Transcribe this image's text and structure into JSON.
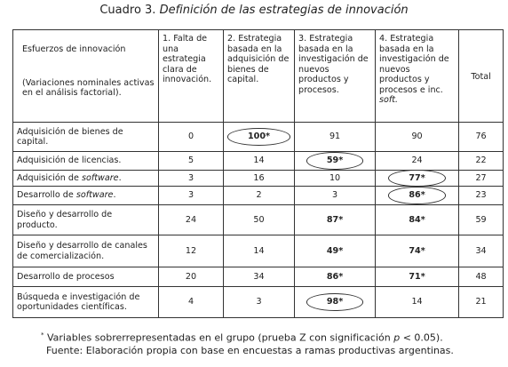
{
  "title": {
    "label": "Cuadro 3.",
    "text": "Definición de las estrategias de innovación"
  },
  "table": {
    "header": {
      "first": [
        "Esfuerzos de innovación",
        "(Variaciones nominales activas en el análisis factorial)."
      ],
      "columns": [
        [
          {
            "text": "1. Falta de una estrategia clara de innovación."
          }
        ],
        [
          {
            "text": "2. Estrategia basada en la adquisición de bienes de capital."
          }
        ],
        [
          {
            "text": "3. Estrategia basada en la investigación de nuevos productos y procesos."
          }
        ],
        [
          {
            "text": "4. Estrategia basada en la investigación de nuevos productos y procesos e inc. "
          },
          {
            "text": "soft.",
            "italic": true
          }
        ],
        [
          {
            "text": "Total"
          }
        ]
      ]
    },
    "rows": [
      {
        "label": [
          {
            "text": "Adquisición de bienes de capital."
          }
        ],
        "cells": [
          {
            "text": "0"
          },
          {
            "text": "100*",
            "circled": true
          },
          {
            "text": "91"
          },
          {
            "text": "90"
          },
          {
            "text": "76"
          }
        ]
      },
      {
        "label": [
          {
            "text": "Adquisición de licencias."
          }
        ],
        "cells": [
          {
            "text": "5"
          },
          {
            "text": "14"
          },
          {
            "text": "59*",
            "circled": true
          },
          {
            "text": "24"
          },
          {
            "text": "22"
          }
        ]
      },
      {
        "label": [
          {
            "text": "Adquisición de "
          },
          {
            "text": "software",
            "italic": true
          },
          {
            "text": "."
          }
        ],
        "cells": [
          {
            "text": "3"
          },
          {
            "text": "16"
          },
          {
            "text": "10"
          },
          {
            "text": "77*",
            "circled": true
          },
          {
            "text": "27"
          }
        ]
      },
      {
        "label": [
          {
            "text": "Desarrollo de "
          },
          {
            "text": "software",
            "italic": true
          },
          {
            "text": "."
          }
        ],
        "cells": [
          {
            "text": "3"
          },
          {
            "text": "2"
          },
          {
            "text": "3"
          },
          {
            "text": "86*",
            "circled": true
          },
          {
            "text": "23"
          }
        ]
      },
      {
        "label": [
          {
            "text": "Diseño y desarrollo de producto."
          }
        ],
        "cells": [
          {
            "text": "24"
          },
          {
            "text": "50"
          },
          {
            "text": "87*"
          },
          {
            "text": "84*"
          },
          {
            "text": "59"
          }
        ]
      },
      {
        "label": [
          {
            "text": "Diseño y desarrollo de canales de comercialización."
          }
        ],
        "cells": [
          {
            "text": "12"
          },
          {
            "text": "14"
          },
          {
            "text": "49*"
          },
          {
            "text": "74*"
          },
          {
            "text": "34"
          }
        ]
      },
      {
        "label": [
          {
            "text": "Desarrollo de procesos"
          }
        ],
        "cells": [
          {
            "text": "20"
          },
          {
            "text": "34"
          },
          {
            "text": "86*"
          },
          {
            "text": "71*"
          },
          {
            "text": "48"
          }
        ]
      },
      {
        "label": [
          {
            "text": "Búsqueda e investigación de oportunidades científicas."
          }
        ],
        "cells": [
          {
            "text": "4"
          },
          {
            "text": "3"
          },
          {
            "text": "98*",
            "circled": true
          },
          {
            "text": "14"
          },
          {
            "text": "21"
          }
        ]
      }
    ]
  },
  "notes": [
    [
      {
        "text": "*",
        "sup": true
      },
      {
        "text": " Variables sobrerrepresentadas en el grupo (prueba Z con significación "
      },
      {
        "text": "p",
        "italic": true
      },
      {
        "text": " < 0.05)."
      }
    ],
    [
      {
        "text": "Fuente: Elaboración propia con base en encuestas a ramas productivas argentinas."
      }
    ]
  ]
}
